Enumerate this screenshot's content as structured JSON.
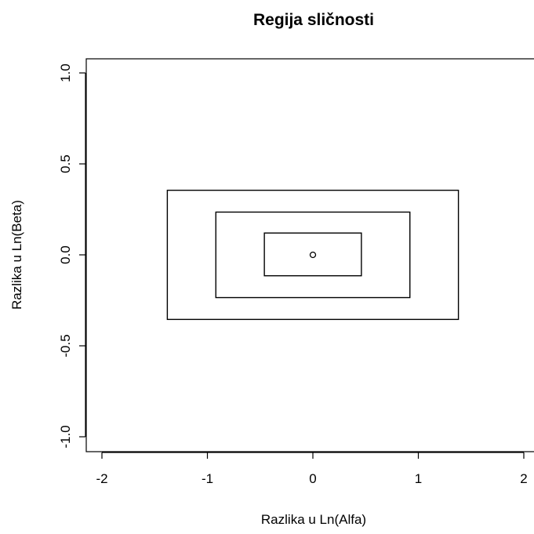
{
  "chart_data": {
    "type": "scatter",
    "title": "Regija sličnosti",
    "xlabel": "Razlika u Ln(Alfa)",
    "ylabel": "Razlika u Ln(Beta)",
    "xlim": [
      -2.2,
      2.1
    ],
    "ylim": [
      -1.08,
      1.08
    ],
    "xticks": [
      -2,
      -1,
      0,
      1,
      2
    ],
    "xtick_labels": [
      "-2",
      "-1",
      "0",
      "1",
      "2"
    ],
    "yticks": [
      -1.0,
      -0.5,
      0.0,
      0.5,
      1.0
    ],
    "ytick_labels": [
      "-1.0",
      "-0.5",
      "0.0",
      "0.5",
      "1.0"
    ],
    "grid": false,
    "legend": "none",
    "points": [
      {
        "x": 0,
        "y": 0
      }
    ],
    "regions": [
      {
        "x0": -0.46,
        "x1": 0.46,
        "y0": -0.115,
        "y1": 0.12
      },
      {
        "x0": -0.92,
        "x1": 0.92,
        "y0": -0.235,
        "y1": 0.235
      },
      {
        "x0": -1.38,
        "x1": 1.38,
        "y0": -0.355,
        "y1": 0.355
      }
    ]
  }
}
